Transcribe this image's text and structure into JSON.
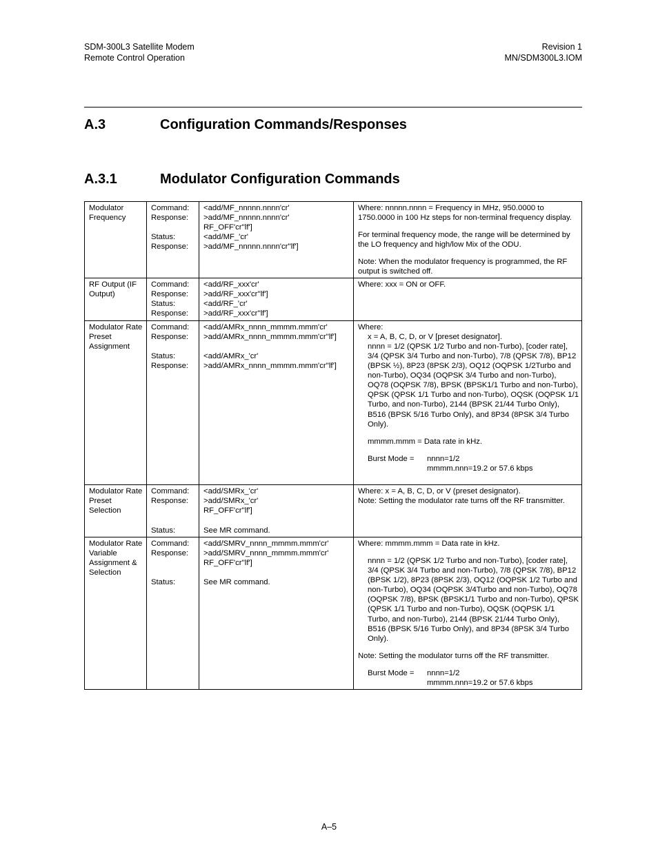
{
  "header": {
    "left1": "SDM-300L3 Satellite Modem",
    "left2": "Remote Control Operation",
    "right1": "Revision 1",
    "right2": "MN/SDM300L3.IOM"
  },
  "sections": {
    "s1num": "A.3",
    "s1title": "Configuration Commands/Responses",
    "s2num": "A.3.1",
    "s2title": "Modulator Configuration Commands"
  },
  "rows": {
    "r1": {
      "name": "Modulator Frequency",
      "labels": {
        "a": "Command:",
        "b": "Response:",
        "c": "Status:",
        "d": "Response:"
      },
      "syntax": {
        "a": "<add/MF_nnnnn.nnnn'cr'",
        "b": ">add/MF_nnnnn.nnnn'cr'",
        "c": "RF_OFF'cr''lf']",
        "d": "<add/MF_'cr'",
        "e": ">add/MF_nnnnn.nnnn'cr''lf']"
      },
      "desc": {
        "p1": "Where: nnnnn.nnnn = Frequency in MHz, 950.0000 to 1750.0000 in 100 Hz steps for non-terminal frequency display.",
        "p2": "For terminal frequency mode, the range will be determined by the LO frequency and high/low Mix of the ODU.",
        "p3": "Note: When the modulator frequency is programmed, the RF output is switched off."
      }
    },
    "r2": {
      "name": "RF Output (IF Output)",
      "labels": {
        "a": "Command:",
        "b": "Response:",
        "c": "Status:",
        "d": "Response:"
      },
      "syntax": {
        "a": "<add/RF_xxx'cr'",
        "b": ">add/RF_xxx'cr''lf']",
        "c": "<add/RF_'cr'",
        "d": ">add/RF_xxx'cr''lf']"
      },
      "desc": {
        "p1": "Where: xxx = ON or OFF."
      }
    },
    "r3": {
      "name": "Modulator Rate Preset Assignment",
      "labels": {
        "a": "Command:",
        "b": "Response:",
        "c": "Status:",
        "d": "Response:"
      },
      "syntax": {
        "a": "<add/AMRx_nnnn_mmmm.mmm'cr'",
        "b": ">add/AMRx_nnnn_mmmm.mmm'cr''lf']",
        "c": "<add/AMRx_'cr'",
        "d": ">add/AMRx_nnnn_mmmm.mmm'cr''lf']"
      },
      "desc": {
        "p1a": "Where:",
        "p1b": "x = A, B, C, D, or V [preset designator].",
        "p1c": "nnnn = 1/2 (QPSK 1/2 Turbo and non-Turbo), [coder rate], 3/4 (QPSK 3/4 Turbo and non-Turbo), 7/8 (QPSK 7/8), BP12 (BPSK ½), 8P23 (8PSK 2/3), OQ12 (OQPSK 1/2Turbo and non-Turbo), OQ34 (OQPSK 3/4 Turbo and non-Turbo), OQ78 (OQPSK 7/8), BPSK (BPSK1/1 Turbo and non-Turbo), QPSK (QPSK 1/1 Turbo and non-Turbo), OQSK (OQPSK 1/1 Turbo, and non-Turbo),  2144 (BPSK 21/44 Turbo Only), B516 (BPSK 5/16 Turbo Only), and 8P34 (8PSK 3/4 Turbo Only).",
        "p2": "mmmm.mmm = Data rate in kHz.",
        "p3l": "Burst Mode =",
        "p3r1": "nnnn=1/2",
        "p3r2": "mmmm.nnn=19.2 or 57.6 kbps"
      }
    },
    "r4": {
      "name": "Modulator Rate Preset Selection",
      "labels": {
        "a": "Command:",
        "b": "Response:",
        "c": "Status:"
      },
      "syntax": {
        "a": "<add/SMRx_'cr'",
        "b": ">add/SMRx_'cr'",
        "c": "RF_OFF'cr''lf']",
        "d": "See MR command."
      },
      "desc": {
        "p1": "Where: x = A, B, C, D, or V (preset designator).",
        "p2": "Note: Setting the modulator rate turns off the RF transmitter."
      }
    },
    "r5": {
      "name": "Modulator Rate Variable Assignment & Selection",
      "labels": {
        "a": "Command:",
        "b": "Response:",
        "c": "Status:"
      },
      "syntax": {
        "a": "<add/SMRV_nnnn_mmmm.mmm'cr'",
        "b": ">add/SMRV_nnnn_mmmm.mmm'cr'",
        "c": "RF_OFF'cr''lf']",
        "d": "See MR command."
      },
      "desc": {
        "p1": "Where: mmmm.mmm = Data rate in kHz.",
        "p2": "nnnn = 1/2 (QPSK 1/2 Turbo and non-Turbo), [coder rate], 3/4 (QPSK 3/4 Turbo and non-Turbo), 7/8 (QPSK 7/8), BP12 (BPSK 1/2), 8P23 (8PSK 2/3), OQ12 (OQPSK 1/2 Turbo and non-Turbo), OQ34 (OQPSK 3/4Turbo and non-Turbo), OQ78 (OQPSK 7/8), BPSK (BPSK1/1 Turbo and non-Turbo), QPSK (QPSK 1/1 Turbo and non-Turbo), OQSK (OQPSK 1/1 Turbo, and non-Turbo),  2144 (BPSK 21/44 Turbo Only), B516 (BPSK 5/16 Turbo Only), and 8P34 (8PSK 3/4 Turbo Only).",
        "p3": "Note: Setting the modulator turns off the RF transmitter.",
        "p4l": "Burst Mode =",
        "p4r1": "nnnn=1/2",
        "p4r2": "mmmm.nnn=19.2 or 57.6 kbps"
      }
    }
  },
  "footer": "A–5"
}
